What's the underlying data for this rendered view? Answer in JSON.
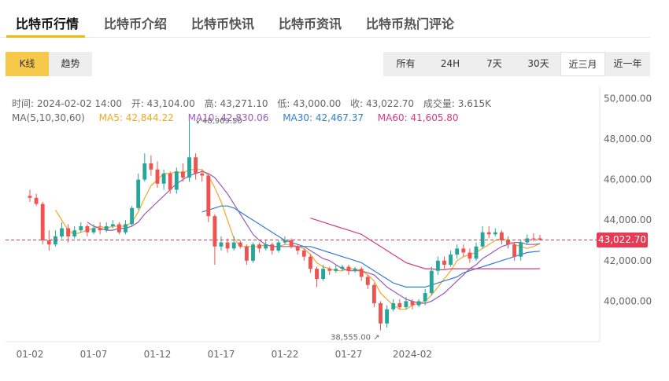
{
  "tabs": [
    {
      "label": "比特币行情"
    },
    {
      "label": "比特币介绍"
    },
    {
      "label": "比特币快讯"
    },
    {
      "label": "比特币资讯"
    },
    {
      "label": "比特币热门评论"
    }
  ],
  "chart_type_toggle": [
    "K线",
    "趋势"
  ],
  "ranges": [
    "所有",
    "24H",
    "7天",
    "30天",
    "近三月",
    "近一年"
  ],
  "selected_range": "近三月",
  "info": {
    "time": "时间: 2024-02-02 14:00",
    "open": "开: 43,104.00",
    "high": "高: 43,271.10",
    "low": "低: 43,000.00",
    "close": "收: 43,022.70",
    "volume": "成交量: 3.615K"
  },
  "ma": {
    "label": "MA(5,10,30,60)",
    "ma5": "MA5: 42,844.22",
    "ma10": "MA10: 42,830.06",
    "ma30": "MA30: 42,467.37",
    "ma60": "MA60: 41,605.80"
  },
  "colors": {
    "up": "#26a69a",
    "down": "#ef5350",
    "ma5": "#f5a623",
    "ma10": "#9b59b6",
    "ma30": "#2f7dd8",
    "ma60": "#d63a7b",
    "current": "#e73b55",
    "accent": "#f0b90b"
  },
  "chart_data": {
    "type": "candlestick",
    "interval": "12h",
    "x_labels": [
      "01-02",
      "01-07",
      "01-12",
      "01-17",
      "01-22",
      "01-27",
      "2024-02"
    ],
    "y_ticks": [
      "50,000.00",
      "48,000.00",
      "46,000.00",
      "44,000.00",
      "42,000.00",
      "40,000.00"
    ],
    "ylim": [
      38000,
      50600
    ],
    "current_price": "43,022.70",
    "current_value": 43022.7,
    "max_label": "48,969.50",
    "min_label": "38,555.00",
    "candles": [
      [
        45200,
        45100,
        45500,
        44900
      ],
      [
        45100,
        44800,
        45300,
        44700
      ],
      [
        44800,
        43000,
        44900,
        42800
      ],
      [
        43000,
        42800,
        43500,
        42500
      ],
      [
        42800,
        43200,
        43500,
        42700
      ],
      [
        43200,
        43600,
        43900,
        43100
      ],
      [
        43600,
        43200,
        43800,
        42900
      ],
      [
        43200,
        43500,
        43700,
        43100
      ],
      [
        43500,
        43700,
        43900,
        43400
      ],
      [
        43700,
        43400,
        43800,
        43200
      ],
      [
        43400,
        43600,
        43800,
        43300
      ],
      [
        43600,
        43500,
        43900,
        43300
      ],
      [
        43500,
        43700,
        43900,
        43400
      ],
      [
        43700,
        43800,
        44000,
        43600
      ],
      [
        43800,
        43400,
        43900,
        43300
      ],
      [
        43400,
        43800,
        44000,
        43300
      ],
      [
        43800,
        44600,
        44700,
        43700
      ],
      [
        44600,
        46000,
        46300,
        44500
      ],
      [
        46000,
        46800,
        47300,
        45900
      ],
      [
        46800,
        46500,
        47200,
        46200
      ],
      [
        46500,
        45800,
        46900,
        45600
      ],
      [
        45800,
        46300,
        46500,
        45500
      ],
      [
        46300,
        45500,
        46400,
        45300
      ],
      [
        45500,
        46400,
        46600,
        45300
      ],
      [
        46400,
        46100,
        46800,
        45900
      ],
      [
        46100,
        47100,
        48969.5,
        45900
      ],
      [
        47100,
        46300,
        47300,
        46000
      ],
      [
        46300,
        46200,
        46500,
        45900
      ],
      [
        46200,
        44200,
        46300,
        43900
      ],
      [
        44200,
        42700,
        44300,
        41800
      ],
      [
        42700,
        42900,
        43200,
        42500
      ],
      [
        42900,
        42600,
        43100,
        42400
      ],
      [
        42600,
        42900,
        43200,
        42500
      ],
      [
        42900,
        42700,
        43000,
        42600
      ],
      [
        42700,
        42000,
        42800,
        41800
      ],
      [
        42000,
        42800,
        42900,
        41900
      ],
      [
        42800,
        42600,
        42900,
        42400
      ],
      [
        42600,
        42800,
        43000,
        42500
      ],
      [
        42800,
        42500,
        42900,
        42300
      ],
      [
        42500,
        42900,
        43000,
        42400
      ],
      [
        42900,
        43000,
        43200,
        42800
      ],
      [
        43000,
        42700,
        43100,
        42600
      ],
      [
        42700,
        42500,
        42800,
        42300
      ],
      [
        42500,
        42200,
        42600,
        42000
      ],
      [
        42200,
        41600,
        42300,
        41400
      ],
      [
        41600,
        41100,
        41700,
        40700
      ],
      [
        41100,
        41600,
        41800,
        41000
      ],
      [
        41600,
        41500,
        41700,
        41300
      ],
      [
        41500,
        41600,
        41800,
        41400
      ],
      [
        41600,
        41700,
        41800,
        41500
      ],
      [
        41700,
        41500,
        41800,
        41300
      ],
      [
        41500,
        41600,
        41700,
        41400
      ],
      [
        41600,
        41200,
        41700,
        41000
      ],
      [
        41200,
        40800,
        41300,
        40600
      ],
      [
        40800,
        39900,
        40900,
        39700
      ],
      [
        39900,
        38900,
        40000,
        38555
      ],
      [
        38900,
        39600,
        39800,
        38700
      ],
      [
        39600,
        39900,
        40100,
        39500
      ],
      [
        39900,
        39700,
        40100,
        39600
      ],
      [
        39700,
        40000,
        40200,
        39600
      ],
      [
        40000,
        39800,
        40100,
        39600
      ],
      [
        39800,
        40000,
        40100,
        39700
      ],
      [
        40000,
        40400,
        40600,
        39800
      ],
      [
        40400,
        41500,
        41700,
        40300
      ],
      [
        41500,
        42000,
        42200,
        41300
      ],
      [
        42000,
        41800,
        42200,
        41600
      ],
      [
        41800,
        42300,
        42500,
        41700
      ],
      [
        42300,
        42600,
        42800,
        42100
      ],
      [
        42600,
        42400,
        42800,
        42200
      ],
      [
        42400,
        42100,
        42600,
        41900
      ],
      [
        42100,
        42700,
        42900,
        42000
      ],
      [
        42700,
        43400,
        43700,
        42600
      ],
      [
        43400,
        43300,
        43700,
        43100
      ],
      [
        43300,
        43400,
        43600,
        43200
      ],
      [
        43400,
        43000,
        43500,
        42800
      ],
      [
        43000,
        42800,
        43200,
        42600
      ],
      [
        42800,
        42200,
        42900,
        42000
      ],
      [
        42200,
        42900,
        43000,
        42000
      ],
      [
        42900,
        43100,
        43300,
        42800
      ],
      [
        43100,
        43050,
        43350,
        42950
      ],
      [
        43104,
        43022.7,
        43271.1,
        43000
      ]
    ],
    "series": [
      {
        "name": "MA5",
        "values": [
          null,
          null,
          null,
          null,
          44500,
          44000,
          43500,
          43300,
          43400,
          43500,
          43600,
          43700,
          43600,
          43700,
          43700,
          43700,
          43900,
          44400,
          45100,
          45700,
          46000,
          46300,
          46300,
          46400,
          46300,
          46500,
          46500,
          46500,
          46200,
          45600,
          44900,
          44000,
          43100,
          42700,
          42700,
          42700,
          42700,
          42800,
          42700,
          42700,
          42800,
          42800,
          42700,
          42600,
          42300,
          41900,
          41700,
          41600,
          41500,
          41500,
          41600,
          41600,
          41500,
          41300,
          41000,
          40400,
          40100,
          39800,
          39600,
          39600,
          39800,
          39900,
          40000,
          40300,
          40700,
          41100,
          41500,
          42000,
          42200,
          42300,
          42400,
          42600,
          42800,
          43000,
          43100,
          43000,
          42800,
          42700,
          42600,
          42700,
          42844
        ]
      },
      {
        "name": "MA10",
        "values": [
          null,
          null,
          null,
          null,
          null,
          null,
          null,
          null,
          null,
          43900,
          43700,
          43600,
          43500,
          43500,
          43600,
          43600,
          43700,
          43900,
          44300,
          44600,
          44900,
          45200,
          45500,
          45800,
          46000,
          46200,
          46300,
          46400,
          46300,
          46100,
          45700,
          45300,
          44800,
          44300,
          43800,
          43300,
          43000,
          42800,
          42700,
          42700,
          42700,
          42700,
          42700,
          42700,
          42500,
          42300,
          42100,
          42000,
          41800,
          41600,
          41500,
          41500,
          41500,
          41400,
          41300,
          41000,
          40700,
          40500,
          40300,
          40100,
          40000,
          39900,
          39900,
          40000,
          40200,
          40400,
          40700,
          41000,
          41300,
          41600,
          41800,
          42100,
          42300,
          42500,
          42700,
          42800,
          42900,
          42900,
          42800,
          42800,
          42830
        ]
      },
      {
        "name": "MA30",
        "values": [
          null,
          null,
          null,
          null,
          null,
          null,
          null,
          null,
          null,
          null,
          null,
          null,
          null,
          null,
          null,
          null,
          null,
          null,
          null,
          null,
          null,
          null,
          null,
          null,
          null,
          null,
          null,
          44400,
          44500,
          44600,
          44700,
          44700,
          44600,
          44400,
          44200,
          44000,
          43800,
          43600,
          43400,
          43200,
          43000,
          42900,
          42800,
          42700,
          42700,
          42600,
          42500,
          42400,
          42300,
          42200,
          42100,
          42000,
          41900,
          41700,
          41500,
          41300,
          41100,
          40900,
          40800,
          40700,
          40700,
          40700,
          40700,
          40800,
          40900,
          41000,
          41100,
          41200,
          41400,
          41500,
          41600,
          41700,
          41800,
          41900,
          42000,
          42100,
          42200,
          42300,
          42400,
          42440,
          42467
        ]
      },
      {
        "name": "MA60",
        "values": [
          null,
          null,
          null,
          null,
          null,
          null,
          null,
          null,
          null,
          null,
          null,
          null,
          null,
          null,
          null,
          null,
          null,
          null,
          null,
          null,
          null,
          null,
          null,
          null,
          null,
          null,
          null,
          null,
          null,
          null,
          null,
          null,
          null,
          null,
          null,
          null,
          null,
          null,
          null,
          null,
          null,
          null,
          null,
          null,
          44100,
          44000,
          43900,
          43800,
          43700,
          43600,
          43500,
          43400,
          43300,
          43100,
          42900,
          42700,
          42500,
          42300,
          42100,
          41900,
          41800,
          41700,
          41600,
          41600,
          41550,
          41550,
          41600,
          41600,
          41600,
          41600,
          41600,
          41600,
          41600,
          41600,
          41600,
          41600,
          41600,
          41600,
          41600,
          41600,
          41606
        ]
      }
    ]
  }
}
